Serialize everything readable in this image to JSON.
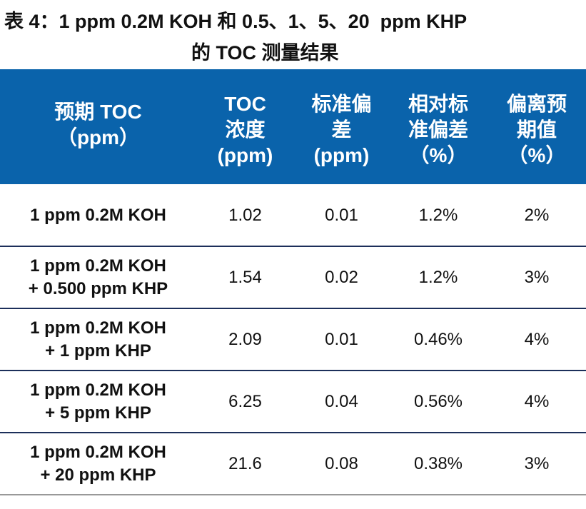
{
  "title": [
    "表 4：1 ppm 0.2M KOH 和 0.5、1、5、20  ppm KHP",
    "的 TOC 测量结果"
  ],
  "table": {
    "header": [
      [
        "预期 TOC",
        "（ppm）"
      ],
      [
        "TOC",
        "浓度",
        "(ppm)"
      ],
      [
        "标准偏",
        "差",
        "(ppm)"
      ],
      [
        "相对标",
        "准偏差",
        "（%）"
      ],
      [
        "偏离预",
        "期值",
        "（%）"
      ]
    ],
    "rows": [
      [
        [
          "1 ppm 0.2M KOH"
        ],
        "1.02",
        "0.01",
        "1.2%",
        "2%"
      ],
      [
        [
          "1 ppm 0.2M KOH",
          "+ 0.500 ppm KHP"
        ],
        "1.54",
        "0.02",
        "1.2%",
        "3%"
      ],
      [
        [
          "1 ppm 0.2M KOH",
          "+ 1 ppm KHP"
        ],
        "2.09",
        "0.01",
        "0.46%",
        "4%"
      ],
      [
        [
          "1 ppm 0.2M KOH",
          "+ 5 ppm KHP"
        ],
        "6.25",
        "0.04",
        "0.56%",
        "4%"
      ],
      [
        [
          "1 ppm 0.2M KOH",
          "+ 20 ppm KHP"
        ],
        "21.6",
        "0.08",
        "0.38%",
        "3%"
      ]
    ]
  }
}
